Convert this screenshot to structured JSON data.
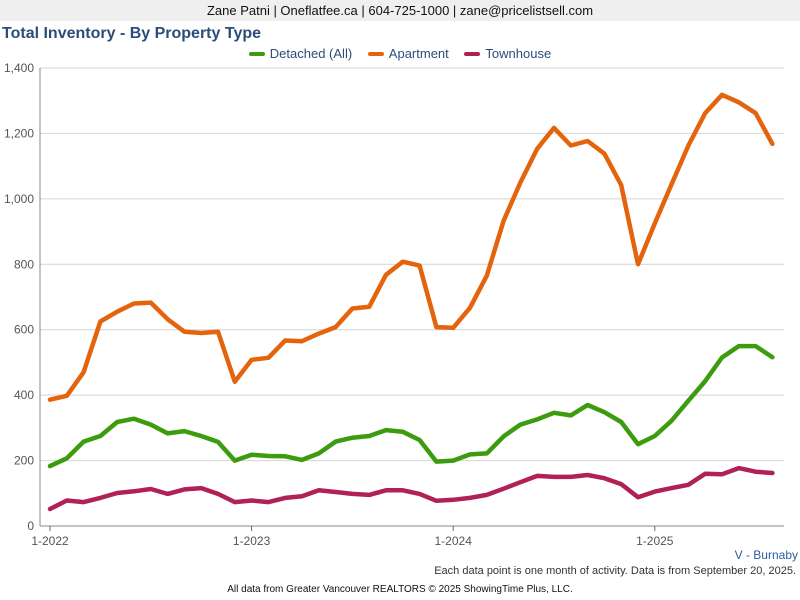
{
  "header": {
    "contact": "Zane Patni | Oneflatfee.ca | 604-725-1000 | zane@pricelistsell.com"
  },
  "chart_data": {
    "type": "line",
    "title": "Total Inventory - By Property Type",
    "xlabel": "",
    "ylabel": "",
    "ylim": [
      0,
      1400
    ],
    "yticks": [
      0,
      200,
      400,
      600,
      800,
      1000,
      1200,
      1400
    ],
    "ytick_labels": [
      "0",
      "200",
      "400",
      "600",
      "800",
      "1,000",
      "1,200",
      "1,400"
    ],
    "xtick_labels": [
      "1-2022",
      "1-2023",
      "1-2024",
      "1-2025"
    ],
    "xtick_index": [
      0,
      12,
      24,
      36
    ],
    "grid": true,
    "legend_position": "top-center",
    "series": [
      {
        "name": "Detached (All)",
        "color": "#3c9c0e",
        "values": [
          183,
          207,
          258,
          275,
          318,
          328,
          310,
          283,
          290,
          275,
          257,
          200,
          218,
          214,
          213,
          202,
          222,
          258,
          270,
          275,
          293,
          288,
          263,
          197,
          200,
          219,
          222,
          274,
          310,
          326,
          346,
          338,
          370,
          348,
          318,
          250,
          275,
          322,
          383,
          443,
          515,
          550,
          550,
          516
        ]
      },
      {
        "name": "Apartment",
        "color": "#e4640d",
        "values": [
          386,
          398,
          470,
          625,
          655,
          680,
          683,
          632,
          594,
          590,
          594,
          441,
          508,
          514,
          567,
          565,
          588,
          608,
          665,
          670,
          768,
          808,
          796,
          608,
          606,
          667,
          765,
          933,
          1050,
          1153,
          1217,
          1163,
          1177,
          1138,
          1042,
          800,
          925,
          1045,
          1163,
          1262,
          1318,
          1295,
          1262,
          1168
        ]
      },
      {
        "name": "Townhouse",
        "color": "#b02158",
        "values": [
          52,
          78,
          73,
          86,
          101,
          106,
          113,
          98,
          112,
          116,
          98,
          73,
          78,
          73,
          86,
          91,
          109,
          104,
          98,
          95,
          109,
          109,
          98,
          77,
          80,
          86,
          95,
          114,
          134,
          153,
          150,
          150,
          156,
          146,
          128,
          88,
          105,
          116,
          126,
          160,
          158,
          177,
          166,
          162
        ]
      }
    ]
  },
  "region": "V - Burnaby",
  "note": "Each data point is one month of activity. Data is from September 20, 2025.",
  "footer": "All data from Greater Vancouver REALTORS © 2025 ShowingTime Plus, LLC."
}
